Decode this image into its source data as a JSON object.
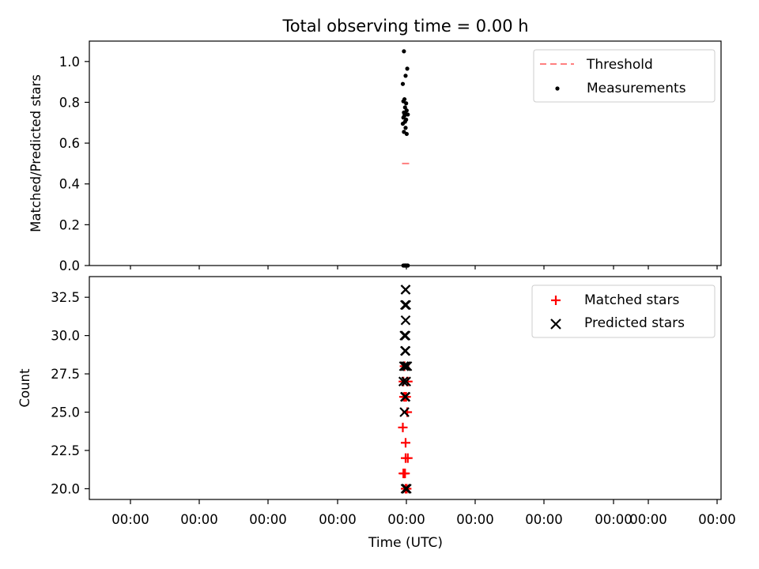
{
  "chart_data": [
    {
      "type": "scatter",
      "title": "Total observing time = 0.00 h",
      "ylabel": "Matched/Predicted stars",
      "xlabel": "",
      "ylim": [
        0.0,
        1.1
      ],
      "yticks": [
        0.0,
        0.2,
        0.4,
        0.6,
        0.8,
        1.0
      ],
      "ytick_labels": [
        "0.0",
        "0.2",
        "0.4",
        "0.6",
        "0.8",
        "1.0"
      ],
      "grid": false,
      "legend_position": "top-right",
      "series": [
        {
          "name": "Threshold",
          "style": "dashed-line",
          "color": "#ff7f7f",
          "x": [
            0,
            1
          ],
          "y": [
            0.5,
            0.5
          ]
        },
        {
          "name": "Measurements",
          "style": "dot",
          "color": "#000000",
          "x": [
            0.2,
            0.8,
            0.5,
            0.0,
            0.3,
            0.1,
            0.6,
            0.4,
            0.7,
            0.2,
            0.5,
            0.9,
            0.3,
            0.1,
            0.6,
            0.4,
            0.0,
            0.5,
            0.2,
            0.7,
            0.8,
            0.3,
            0.6,
            0.9,
            0.1,
            0.4,
            0.5
          ],
          "y": [
            1.05,
            0.965,
            0.93,
            0.89,
            0.815,
            0.805,
            0.795,
            0.775,
            0.76,
            0.75,
            0.745,
            0.74,
            0.735,
            0.725,
            0.715,
            0.705,
            0.695,
            0.675,
            0.655,
            0.645,
            0.0,
            0.0,
            0.0,
            0.0,
            0.0,
            0.0,
            0.0
          ]
        }
      ]
    },
    {
      "type": "scatter",
      "title": "",
      "ylabel": "Count",
      "xlabel": "Time (UTC)",
      "ylim": [
        19.3,
        33.85
      ],
      "yticks": [
        20.0,
        22.5,
        25.0,
        27.5,
        30.0,
        32.5
      ],
      "ytick_labels": [
        "20.0",
        "22.5",
        "25.0",
        "27.5",
        "30.0",
        "32.5"
      ],
      "xtick_labels": [
        "00:00",
        "00:00",
        "00:00",
        "00:00",
        "00:00",
        "00:00",
        "00:00",
        "00:00",
        "00:00",
        "00:00"
      ],
      "grid": false,
      "legend_position": "top-right",
      "series": [
        {
          "name": "Matched stars",
          "marker": "+",
          "color": "#ff0000",
          "x": [
            0.5,
            0.7,
            0.2,
            0.4,
            0.1,
            0.3,
            0.9,
            0.5,
            0.5,
            0.0,
            0.8,
            0.2,
            0.6,
            0.4,
            0.1,
            0.9,
            0.3
          ],
          "y": [
            20,
            20,
            21,
            21,
            21,
            21,
            22,
            22,
            23,
            24,
            25,
            26,
            26,
            26,
            27,
            27,
            28
          ]
        },
        {
          "name": "Predicted stars",
          "marker": "x",
          "color": "#000000",
          "x": [
            0.7,
            0.5,
            0.3,
            0.5,
            0.4,
            0.1,
            0.6,
            0.5,
            0.2,
            0.8,
            0.4,
            0.5,
            0.3,
            0.5,
            0.5,
            0.4,
            0.6,
            0.5,
            0.5
          ],
          "y": [
            20,
            20,
            25,
            26,
            26,
            27,
            27,
            28,
            28,
            28,
            29,
            29,
            30,
            30,
            31,
            32,
            32,
            33,
            33
          ]
        }
      ]
    }
  ]
}
